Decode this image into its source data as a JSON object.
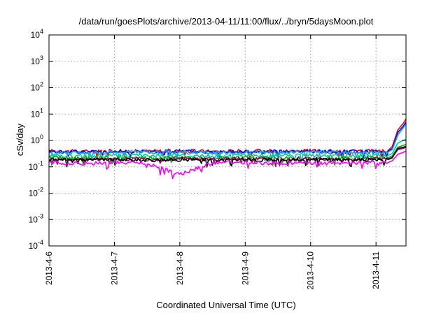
{
  "chart_data": {
    "type": "line",
    "title": "/data/run/goesPlots/archive/2013-04-11/11:00/flux/../bryn/5daysMoon.plot",
    "xlabel": "Coordinated Universal Time (UTC)",
    "ylabel": "cSv/day",
    "y_scale": "log",
    "ylim": [
      0.0001,
      10000
    ],
    "y_ticks": [
      {
        "base": "10",
        "exp": "-4",
        "value": 0.0001
      },
      {
        "base": "10",
        "exp": "-3",
        "value": 0.001
      },
      {
        "base": "10",
        "exp": "-2",
        "value": 0.01
      },
      {
        "base": "10",
        "exp": "-1",
        "value": 0.1
      },
      {
        "base": "10",
        "exp": "0",
        "value": 1
      },
      {
        "base": "10",
        "exp": "1",
        "value": 10
      },
      {
        "base": "10",
        "exp": "2",
        "value": 100
      },
      {
        "base": "10",
        "exp": "3",
        "value": 1000
      },
      {
        "base": "10",
        "exp": "4",
        "value": 10000
      }
    ],
    "xlim": [
      "2013-4-6",
      "2013-4-11 11:00"
    ],
    "x_ticks": [
      "2013-4-6",
      "2013-4-7",
      "2013-4-8",
      "2013-4-9",
      "2013-4-10",
      "2013-4-11"
    ],
    "grid": true,
    "x": [
      "2013-4-6 00:00",
      "2013-4-6 12:00",
      "2013-4-7 00:00",
      "2013-4-7 12:00",
      "2013-4-8 00:00",
      "2013-4-8 12:00",
      "2013-4-9 00:00",
      "2013-4-9 12:00",
      "2013-4-10 00:00",
      "2013-4-10 12:00",
      "2013-4-11 00:00",
      "2013-4-11 04:00",
      "2013-4-11 06:00",
      "2013-4-11 08:00",
      "2013-4-11 10:00",
      "2013-4-11 11:00"
    ],
    "series": [
      {
        "color": "#ff0000",
        "values": [
          0.4,
          0.38,
          0.4,
          0.39,
          0.41,
          0.38,
          0.4,
          0.39,
          0.4,
          0.38,
          0.4,
          0.38,
          0.6,
          2.5,
          4.5,
          6.5
        ]
      },
      {
        "color": "#0000ff",
        "values": [
          0.38,
          0.37,
          0.39,
          0.38,
          0.39,
          0.37,
          0.38,
          0.38,
          0.39,
          0.37,
          0.38,
          0.37,
          0.5,
          2.0,
          3.5,
          5.0
        ]
      },
      {
        "color": "#00aaff",
        "values": [
          0.35,
          0.34,
          0.36,
          0.35,
          0.36,
          0.34,
          0.35,
          0.35,
          0.36,
          0.34,
          0.35,
          0.34,
          0.45,
          1.6,
          3.0,
          4.2
        ]
      },
      {
        "color": "#00c8a0",
        "values": [
          0.27,
          0.26,
          0.27,
          0.26,
          0.27,
          0.26,
          0.27,
          0.26,
          0.27,
          0.26,
          0.27,
          0.26,
          0.32,
          0.8,
          1.0,
          1.1
        ]
      },
      {
        "color": "#00b000",
        "values": [
          0.22,
          0.21,
          0.22,
          0.21,
          0.22,
          0.21,
          0.22,
          0.21,
          0.22,
          0.21,
          0.22,
          0.21,
          0.26,
          0.55,
          0.65,
          0.7
        ]
      },
      {
        "color": "#a00060",
        "values": [
          0.2,
          0.19,
          0.2,
          0.19,
          0.2,
          0.19,
          0.2,
          0.19,
          0.2,
          0.19,
          0.2,
          0.19,
          0.23,
          0.45,
          0.5,
          0.55
        ]
      },
      {
        "color": "#000000",
        "values": [
          0.19,
          0.18,
          0.19,
          0.18,
          0.19,
          0.18,
          0.19,
          0.18,
          0.19,
          0.18,
          0.19,
          0.18,
          0.22,
          0.5,
          0.55,
          0.6
        ]
      },
      {
        "color": "#ff00ff",
        "values": [
          0.15,
          0.13,
          0.15,
          0.14,
          0.05,
          0.14,
          0.15,
          0.13,
          0.14,
          0.13,
          0.15,
          0.14,
          0.17,
          0.3,
          0.35,
          0.4
        ]
      }
    ]
  }
}
